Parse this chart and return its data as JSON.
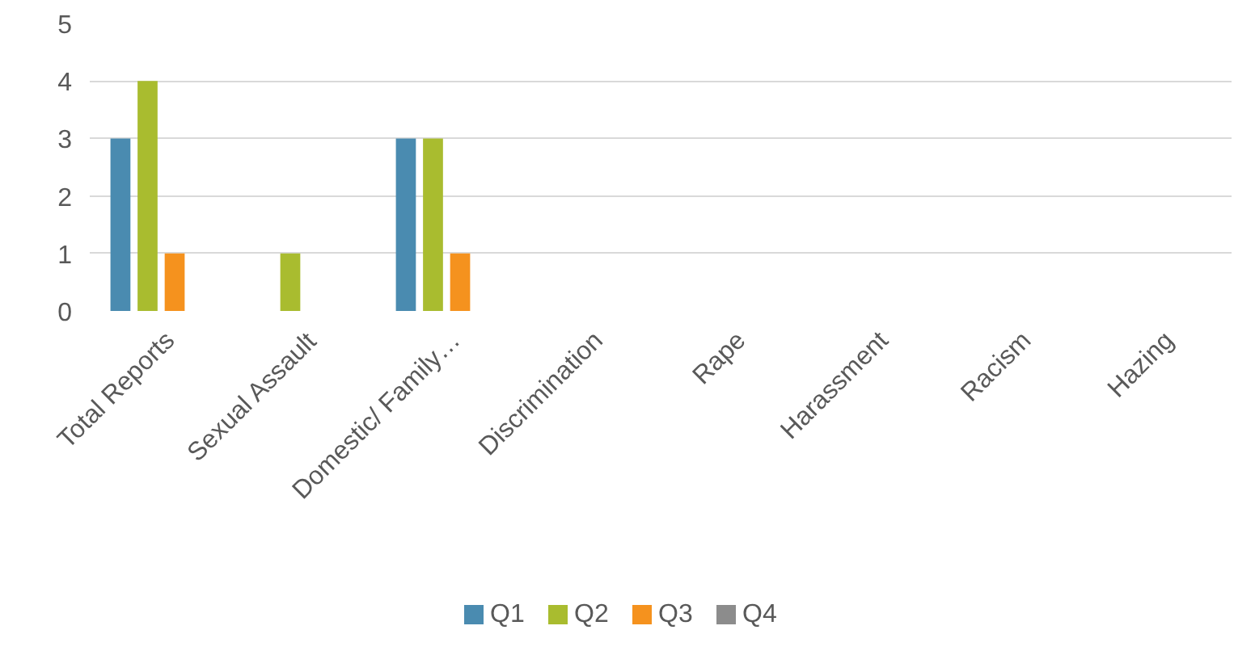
{
  "chart_data": {
    "type": "bar",
    "categories": [
      "Total Reports",
      "Sexual Assault",
      "Domestic/ Family…",
      "Discrimination",
      "Rape",
      "Harassment",
      "Racism",
      "Hazing"
    ],
    "series": [
      {
        "name": "Q1",
        "color": "#4a8bb0",
        "values": [
          3,
          0,
          3,
          0,
          0,
          0,
          0,
          0
        ]
      },
      {
        "name": "Q2",
        "color": "#a9bc2f",
        "values": [
          4,
          1,
          3,
          0,
          0,
          0,
          0,
          0
        ]
      },
      {
        "name": "Q3",
        "color": "#f5921e",
        "values": [
          1,
          0,
          1,
          0,
          0,
          0,
          0,
          0
        ]
      },
      {
        "name": "Q4",
        "color": "#8c8c8c",
        "values": [
          0,
          0,
          0,
          0,
          0,
          0,
          0,
          0
        ]
      }
    ],
    "ylim": [
      0,
      5
    ],
    "yticks": [
      0,
      1,
      2,
      3,
      4,
      5
    ],
    "grid": "y",
    "legend": "bottom"
  }
}
